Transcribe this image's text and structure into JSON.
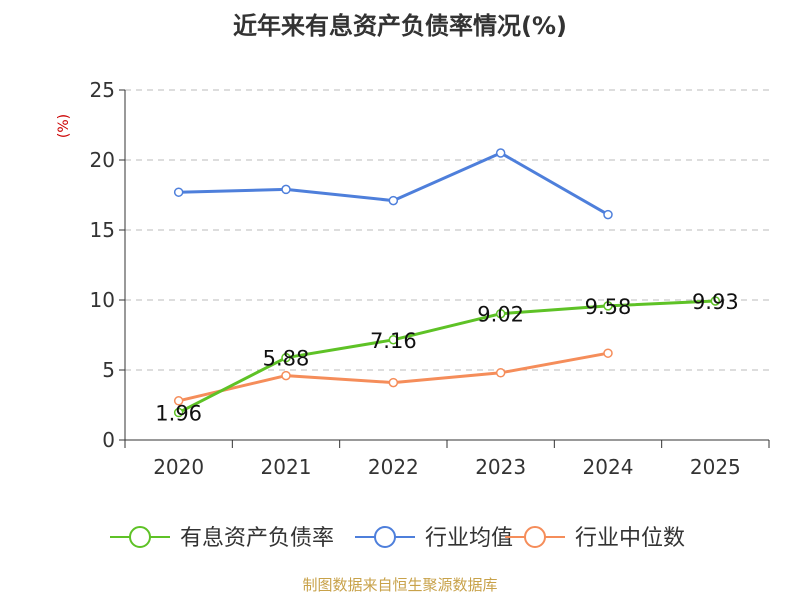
{
  "chart_data": {
    "type": "line",
    "title": "近年来有息资产负债率情况(%)",
    "ylabel": "(%)",
    "xlabel": "",
    "categories": [
      "2020",
      "2021",
      "2022",
      "2023",
      "2024",
      "2025"
    ],
    "ylim": [
      0,
      25
    ],
    "yticks": [
      0,
      5,
      10,
      15,
      20,
      25
    ],
    "grid": true,
    "legend_position": "bottom",
    "series": [
      {
        "name": "有息资产负债率",
        "color": "#5ec226",
        "values": [
          1.96,
          5.88,
          7.16,
          9.02,
          9.58,
          9.93
        ],
        "labels": [
          "1.96",
          "5.88",
          "7.16",
          "9.02",
          "9.58",
          "9.93"
        ]
      },
      {
        "name": "行业均值",
        "color": "#4e7fdb",
        "values": [
          17.7,
          17.9,
          17.1,
          20.5,
          16.1,
          null
        ]
      },
      {
        "name": "行业中位数",
        "color": "#f58d5a",
        "values": [
          2.8,
          4.6,
          4.1,
          4.8,
          6.2,
          null
        ]
      }
    ]
  },
  "source": "制图数据来自恒生聚源数据库",
  "colors": {
    "title": "#333333",
    "axis": "#333333",
    "grid": "#bbbbbb",
    "ylabel": "#cc0000",
    "source": "#c8a24a"
  }
}
